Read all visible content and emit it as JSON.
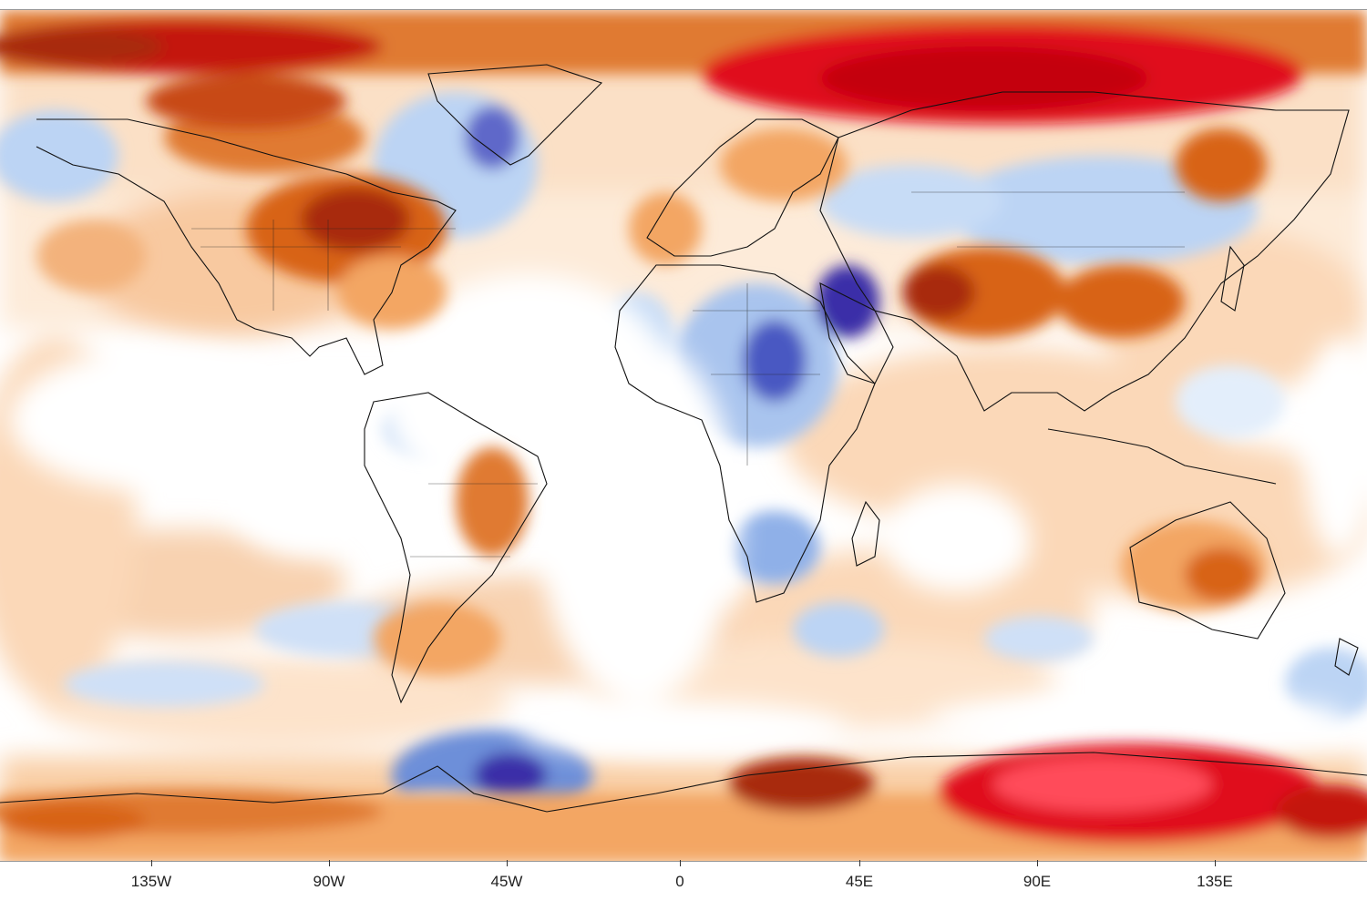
{
  "map": {
    "projection": "equirectangular",
    "field": "temperature anomaly",
    "color_scale": {
      "strong_cold": "#3b2fa8",
      "cold": "#6d8fd9",
      "cool": "#bcd4f4",
      "neutral": "#ffffff",
      "warm_light": "#fbd8b8",
      "warm": "#f3a664",
      "hot": "#d86418",
      "very_hot": "#a8290c",
      "extreme": "#e0101c"
    },
    "longitude_ticks": [
      "135W",
      "90W",
      "45W",
      "0",
      "45E",
      "90E",
      "135E"
    ],
    "longitude_values": [
      -135,
      -90,
      -45,
      0,
      45,
      90,
      135
    ],
    "regions": [
      {
        "name": "arctic-ocean-anomaly",
        "level": "extreme"
      },
      {
        "name": "eastern-north-america",
        "level": "very_hot"
      },
      {
        "name": "greenland-cold-anomaly",
        "level": "strong_cold"
      },
      {
        "name": "north-africa-cold",
        "level": "cold"
      },
      {
        "name": "arabia-cold",
        "level": "strong_cold"
      },
      {
        "name": "central-asia-warm",
        "level": "hot"
      },
      {
        "name": "siberia-cool",
        "level": "cool"
      },
      {
        "name": "australia-warm",
        "level": "warm"
      },
      {
        "name": "antarctic-peninsula-cold",
        "level": "strong_cold"
      },
      {
        "name": "east-antarctica-hot",
        "level": "extreme"
      }
    ]
  }
}
